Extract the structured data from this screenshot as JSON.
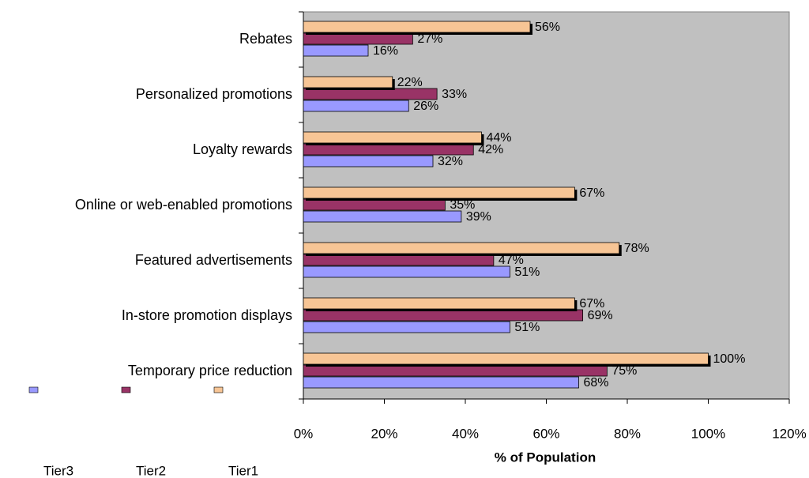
{
  "chart_data": {
    "type": "bar",
    "orientation": "horizontal",
    "categories": [
      "Rebates",
      "Personalized promotions",
      "Loyalty rewards",
      "Online or web-enabled promotions",
      "Featured advertisements",
      "In-store promotion displays",
      "Temporary price reduction"
    ],
    "series": [
      {
        "name": "Tier3",
        "color": "#9999ff",
        "values": [
          16,
          26,
          32,
          39,
          51,
          51,
          68
        ],
        "value_labels": [
          "16%",
          "26%",
          "32%",
          "39%",
          "51%",
          "51%",
          "68%"
        ]
      },
      {
        "name": "Tier2",
        "color": "#993366",
        "values": [
          27,
          33,
          42,
          35,
          47,
          69,
          75
        ],
        "value_labels": [
          "27%",
          "33%",
          "42%",
          "35%",
          "47%",
          "69%",
          "75%"
        ]
      },
      {
        "name": "Tier1",
        "color": "#f7c595",
        "values": [
          56,
          22,
          44,
          67,
          78,
          67,
          100
        ],
        "value_labels": [
          "56%",
          "22%",
          "44%",
          "67%",
          "78%",
          "67%",
          "100%"
        ]
      }
    ],
    "x_label": "% of Population",
    "xlim": [
      0,
      120
    ],
    "xticks": [
      {
        "value": 0,
        "label": "0%"
      },
      {
        "value": 20,
        "label": "20%"
      },
      {
        "value": 40,
        "label": "40%"
      },
      {
        "value": 60,
        "label": "60%"
      },
      {
        "value": 80,
        "label": "80%"
      },
      {
        "value": 100,
        "label": "100%"
      },
      {
        "value": 120,
        "label": "120%"
      }
    ],
    "plot_background": "#c0c0c0",
    "legend": "bottom-left"
  }
}
